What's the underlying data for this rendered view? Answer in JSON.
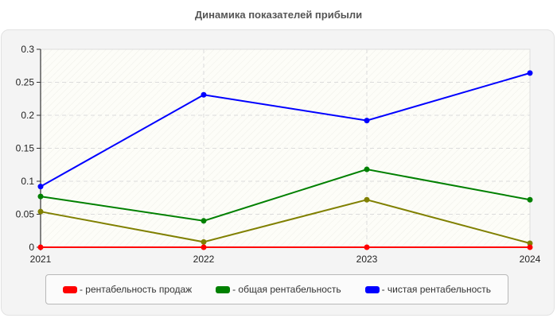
{
  "title": "Динамика показателей прибыли",
  "chart_data": {
    "type": "line",
    "title": "Динамика показателей прибыли",
    "xlabel": "",
    "ylabel": "",
    "x": [
      "2021",
      "2022",
      "2023",
      "2024"
    ],
    "ylim": [
      0,
      0.3
    ],
    "yticks": [
      "0",
      "0.05",
      "0.1",
      "0.15",
      "0.2",
      "0.25",
      "0.3"
    ],
    "grid": true,
    "legend_position": "bottom",
    "series": [
      {
        "name": "- рентабельность продаж",
        "color": "#ff0000",
        "values": [
          0,
          0,
          0,
          0
        ]
      },
      {
        "name": "- общая рентабельность",
        "color": "#008000",
        "values": [
          0.077,
          0.04,
          0.118,
          0.072
        ]
      },
      {
        "name": "- чистая рентабельность",
        "color": "#0000ff",
        "values": [
          0.092,
          0.231,
          0.192,
          0.264
        ]
      },
      {
        "name": "",
        "color": "#808000",
        "values": [
          0.054,
          0.008,
          0.072,
          0.006
        ],
        "in_legend": false
      }
    ]
  },
  "legend": [
    {
      "label": "- рентабельность продаж",
      "color": "#ff0000"
    },
    {
      "label": "- общая рентабельность",
      "color": "#008000"
    },
    {
      "label": "- чистая рентабельность",
      "color": "#0000ff"
    }
  ]
}
